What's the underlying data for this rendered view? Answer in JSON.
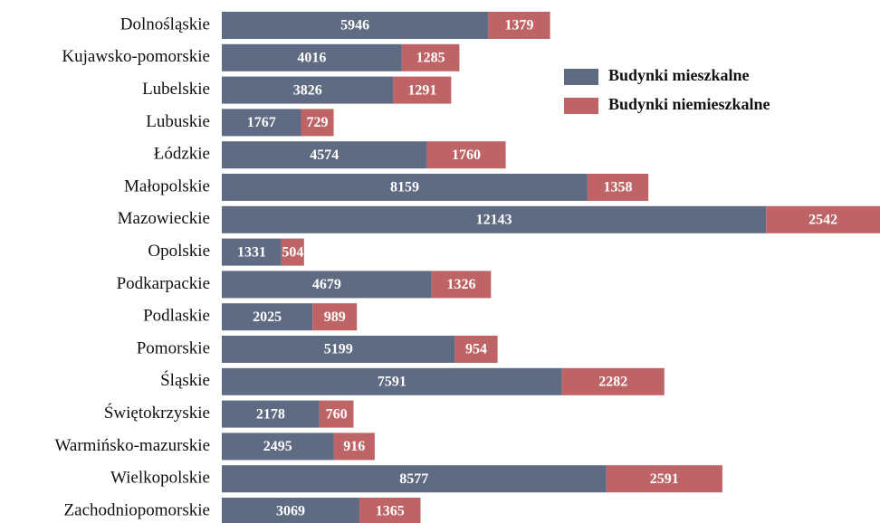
{
  "chart_data": {
    "type": "bar",
    "orientation": "horizontal",
    "stacked": true,
    "categories": [
      "Dolnośląskie",
      "Kujawsko-pomorskie",
      "Lubelskie",
      "Lubuskie",
      "Łódzkie",
      "Małopolskie",
      "Mazowieckie",
      "Opolskie",
      "Podkarpackie",
      "Podlaskie",
      "Pomorskie",
      "Śląskie",
      "Świętokrzyskie",
      "Warmińsko-mazurskie",
      "Wielkopolskie",
      "Zachodniopomorskie"
    ],
    "series": [
      {
        "name": "Budynki mieszkalne",
        "color": "#5e6b82",
        "values": [
          5946,
          4016,
          3826,
          1767,
          4574,
          8159,
          12143,
          1331,
          4679,
          2025,
          5199,
          7591,
          2178,
          2495,
          8577,
          3069
        ]
      },
      {
        "name": "Budynki niemieszkalne",
        "color": "#bf6466",
        "values": [
          1379,
          1285,
          1291,
          729,
          1760,
          1358,
          2542,
          504,
          1326,
          989,
          954,
          2282,
          760,
          916,
          2591,
          1365
        ]
      }
    ],
    "legend": "upper right"
  }
}
